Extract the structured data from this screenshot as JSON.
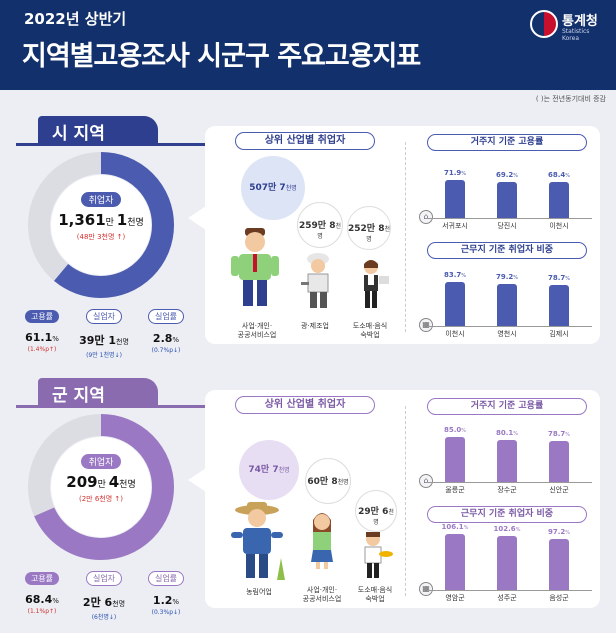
{
  "header": {
    "subtitle": "2022년 상반기",
    "title": "지역별고용조사 시군구 주요고용지표",
    "logo_name": "통계청",
    "logo_eng": "Statistics Korea"
  },
  "note": "( )는 전년동기대비 증감",
  "colors": {
    "si_primary": "#4b5bb0",
    "gun_primary": "#9a78c4",
    "up": "#d23030",
    "down": "#2a4fb0"
  },
  "si": {
    "tab": "시 지역",
    "center_pill": "취업자",
    "center_value_1": "1,361",
    "center_unit_1": "만 ",
    "center_value_2": "1",
    "center_unit_2": "천명",
    "center_change": "(48만 3천명 ↑)",
    "employment_rate_fraction": 0.611,
    "stats": [
      {
        "label": "고용률",
        "value": "61.1",
        "unit": "%",
        "change": "(1.4%p↑)",
        "dir": "up"
      },
      {
        "label": "실업자",
        "value": "39만 1",
        "unit": "천명",
        "change": "(9만 1천명↓)",
        "dir": "down"
      },
      {
        "label": "실업률",
        "value": "2.8",
        "unit": "%",
        "change": "(0.7%p↓)",
        "dir": "down"
      }
    ],
    "industry_title": "상위 산업별 취업자",
    "industries": [
      {
        "value": "507만 7",
        "unit": "천명",
        "label": "사업·개인·\n공공서비스업"
      },
      {
        "value": "259만 8",
        "unit": "천명",
        "label": "광·제조업"
      },
      {
        "value": "252만 8",
        "unit": "천명",
        "label": "도소매·음식\n숙박업"
      }
    ],
    "rank1_title": "거주지 기준 고용률",
    "rank1": [
      {
        "name": "서귀포시",
        "value": "71.9",
        "unit": "%",
        "v": 71.9
      },
      {
        "name": "당진시",
        "value": "69.2",
        "unit": "%",
        "v": 69.2
      },
      {
        "name": "이천시",
        "value": "68.4",
        "unit": "%",
        "v": 68.4
      }
    ],
    "rank2_title": "근무지 기준 취업자 비중",
    "rank2": [
      {
        "name": "이천시",
        "value": "83.7",
        "unit": "%",
        "v": 83.7
      },
      {
        "name": "영천시",
        "value": "79.2",
        "unit": "%",
        "v": 79.2
      },
      {
        "name": "김제시",
        "value": "78.7",
        "unit": "%",
        "v": 78.7
      }
    ]
  },
  "gun": {
    "tab": "군 지역",
    "center_pill": "취업자",
    "center_value_1": "209",
    "center_unit_1": "만 ",
    "center_value_2": "4",
    "center_unit_2": "천명",
    "center_change": "(2만 6천명 ↑)",
    "employment_rate_fraction": 0.684,
    "stats": [
      {
        "label": "고용률",
        "value": "68.4",
        "unit": "%",
        "change": "(1.1%p↑)",
        "dir": "up"
      },
      {
        "label": "실업자",
        "value": "2만 6",
        "unit": "천명",
        "change": "(6천명↓)",
        "dir": "down"
      },
      {
        "label": "실업률",
        "value": "1.2",
        "unit": "%",
        "change": "(0.3%p↓)",
        "dir": "down"
      }
    ],
    "industry_title": "상위 산업별 취업자",
    "industries": [
      {
        "value": "74만 7",
        "unit": "천명",
        "label": "농림어업"
      },
      {
        "value": "60만 8",
        "unit": "천명",
        "label": "사업·개인·\n공공서비스업"
      },
      {
        "value": "29만 6",
        "unit": "천명",
        "label": "도소매·음식\n숙박업"
      }
    ],
    "rank1_title": "거주지 기준 고용률",
    "rank1": [
      {
        "name": "울릉군",
        "value": "85.0",
        "unit": "%",
        "v": 85.0
      },
      {
        "name": "장수군",
        "value": "80.1",
        "unit": "%",
        "v": 80.1
      },
      {
        "name": "신안군",
        "value": "78.7",
        "unit": "%",
        "v": 78.7
      }
    ],
    "rank2_title": "근무지 기준 취업자 비중",
    "rank2": [
      {
        "name": "영암군",
        "value": "106.1",
        "unit": "%",
        "v": 106.1
      },
      {
        "name": "성주군",
        "value": "102.6",
        "unit": "%",
        "v": 102.6
      },
      {
        "name": "음성군",
        "value": "97.2",
        "unit": "%",
        "v": 97.2
      }
    ]
  },
  "chart_data": [
    {
      "type": "pie",
      "title": "시 지역 고용률",
      "values": [
        61.1,
        38.9
      ]
    },
    {
      "type": "bar",
      "title": "시 지역 거주지 기준 고용률",
      "categories": [
        "서귀포시",
        "당진시",
        "이천시"
      ],
      "values": [
        71.9,
        69.2,
        68.4
      ]
    },
    {
      "type": "bar",
      "title": "시 지역 근무지 기준 취업자 비중",
      "categories": [
        "이천시",
        "영천시",
        "김제시"
      ],
      "values": [
        83.7,
        79.2,
        78.7
      ]
    },
    {
      "type": "pie",
      "title": "군 지역 고용률",
      "values": [
        68.4,
        31.6
      ]
    },
    {
      "type": "bar",
      "title": "군 지역 거주지 기준 고용률",
      "categories": [
        "울릉군",
        "장수군",
        "신안군"
      ],
      "values": [
        85.0,
        80.1,
        78.7
      ]
    },
    {
      "type": "bar",
      "title": "군 지역 근무지 기준 취업자 비중",
      "categories": [
        "영암군",
        "성주군",
        "음성군"
      ],
      "values": [
        106.1,
        102.6,
        97.2
      ]
    }
  ]
}
